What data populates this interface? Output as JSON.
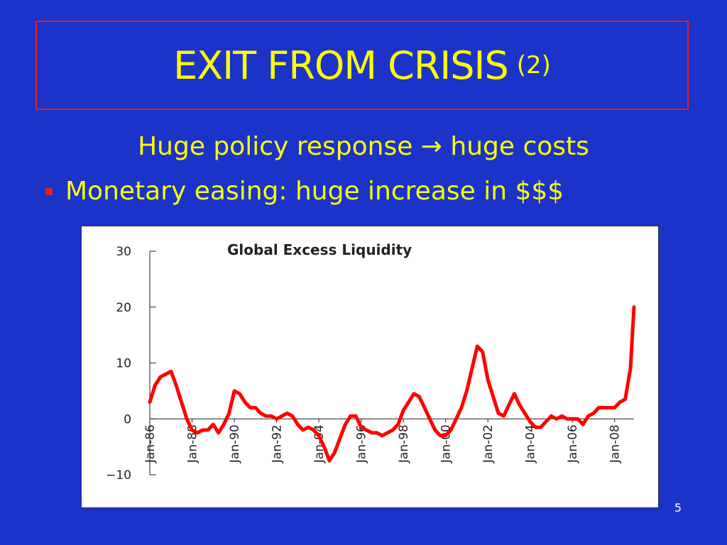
{
  "slide": {
    "title": "EXIT FROM CRISIS",
    "title_suffix": "(2)",
    "subheading": "Huge policy response → huge costs",
    "bullet": "Monetary easing: huge increase in $$$",
    "page_number": "5"
  },
  "colors": {
    "background": "#1b33c9",
    "text": "#ffff00",
    "accent": "#e0201e",
    "line": "#ff0000"
  },
  "chart_data": {
    "type": "line",
    "title": "Global Excess Liquidity",
    "xlabel": "",
    "ylabel": "",
    "ylim": [
      -10,
      30
    ],
    "x_range": [
      "1986-01",
      "2008-12"
    ],
    "yticks": [
      -10,
      0,
      10,
      20,
      30
    ],
    "xticks": [
      "Jan-86",
      "Jan-88",
      "Jan-90",
      "Jan-92",
      "Jan-94",
      "Jan-96",
      "Jan-98",
      "Jan-00",
      "Jan-02",
      "Jan-04",
      "Jan-06",
      "Jan-08"
    ],
    "grid": false,
    "legend": "none",
    "series": [
      {
        "x": [
          "1986-01",
          "1986-04",
          "1986-07",
          "1986-10",
          "1987-01",
          "1987-04",
          "1987-07",
          "1987-10",
          "1988-01",
          "1988-04",
          "1988-07",
          "1988-10",
          "1989-01",
          "1989-04",
          "1989-07",
          "1989-10",
          "1990-01",
          "1990-04",
          "1990-07",
          "1990-10",
          "1991-01",
          "1991-04",
          "1991-07",
          "1991-10",
          "1992-01",
          "1992-04",
          "1992-07",
          "1992-10",
          "1993-01",
          "1993-04",
          "1993-07",
          "1993-10",
          "1994-01",
          "1994-04",
          "1994-07",
          "1994-10",
          "1995-01",
          "1995-04",
          "1995-07",
          "1995-10",
          "1996-01",
          "1996-04",
          "1996-07",
          "1996-10",
          "1997-01",
          "1997-04",
          "1997-07",
          "1997-10",
          "1998-01",
          "1998-04",
          "1998-07",
          "1998-10",
          "1999-01",
          "1999-04",
          "1999-07",
          "1999-10",
          "2000-01",
          "2000-04",
          "2000-07",
          "2000-10",
          "2001-01",
          "2001-04",
          "2001-07",
          "2001-10",
          "2002-01",
          "2002-04",
          "2002-07",
          "2002-10",
          "2003-01",
          "2003-04",
          "2003-07",
          "2003-10",
          "2004-01",
          "2004-04",
          "2004-07",
          "2004-10",
          "2005-01",
          "2005-04",
          "2005-07",
          "2005-10",
          "2006-01",
          "2006-04",
          "2006-07",
          "2006-10",
          "2007-01",
          "2007-04",
          "2007-07",
          "2007-10",
          "2008-01",
          "2008-04",
          "2008-07",
          "2008-10",
          "2008-12"
        ],
        "y": [
          3,
          6,
          7.5,
          8,
          8.5,
          6,
          3,
          0,
          -2,
          -2.5,
          -2,
          -2,
          -1,
          -2.5,
          -1,
          1,
          5,
          4.5,
          3,
          2,
          2,
          1,
          0.5,
          0.5,
          0,
          0.5,
          1,
          0.5,
          -1,
          -2,
          -1.5,
          -2,
          -3,
          -5,
          -7.5,
          -6,
          -3.5,
          -1,
          0.5,
          0.5,
          -1.5,
          -2,
          -2.5,
          -2.5,
          -3,
          -2.5,
          -2,
          -1,
          1.5,
          3,
          4.5,
          4,
          2,
          0,
          -2,
          -3,
          -3,
          -2,
          0,
          2,
          5,
          9,
          13,
          12,
          7,
          4,
          1,
          0.5,
          2.5,
          4.5,
          2.5,
          1,
          -0.5,
          -1.5,
          -1.5,
          -0.5,
          0.5,
          0,
          0.5,
          0,
          0,
          0,
          -1,
          0.5,
          1,
          2,
          2,
          2,
          2,
          3,
          3.5,
          9,
          20
        ]
      }
    ]
  }
}
